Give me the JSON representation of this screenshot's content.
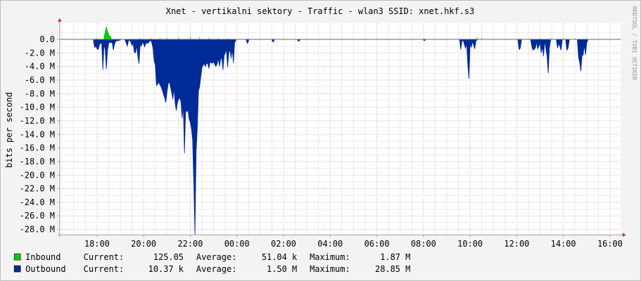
{
  "chart_data": {
    "type": "area",
    "title": "Xnet - vertikalni sektory - Traffic - wlan3 SSID: xnet.hkf.s3",
    "ylabel": "bits per second",
    "xlabel": "",
    "watermark": "RRDTOOL / TOBI OETIKER",
    "x_unit": "hour",
    "xlim": [
      16.4,
      40.45
    ],
    "ylim": [
      -28.8,
      2.4
    ],
    "grid": true,
    "legend_position": "bottom",
    "y_ticks": [
      {
        "value": 0,
        "label": "0.0"
      },
      {
        "value": -2,
        "label": "-2.0 M"
      },
      {
        "value": -4,
        "label": "-4.0 M"
      },
      {
        "value": -6,
        "label": "-6.0 M"
      },
      {
        "value": -8,
        "label": "-8.0 M"
      },
      {
        "value": -10,
        "label": "-10.0 M"
      },
      {
        "value": -12,
        "label": "-12.0 M"
      },
      {
        "value": -14,
        "label": "-14.0 M"
      },
      {
        "value": -16,
        "label": "-16.0 M"
      },
      {
        "value": -18,
        "label": "-18.0 M"
      },
      {
        "value": -20,
        "label": "-20.0 M"
      },
      {
        "value": -22,
        "label": "-22.0 M"
      },
      {
        "value": -24,
        "label": "-24.0 M"
      },
      {
        "value": -26,
        "label": "-26.0 M"
      },
      {
        "value": -28,
        "label": "-28.0 M"
      }
    ],
    "x_ticks": [
      {
        "value": 18,
        "label": "18:00"
      },
      {
        "value": 20,
        "label": "20:00"
      },
      {
        "value": 22,
        "label": "22:00"
      },
      {
        "value": 24,
        "label": "00:00"
      },
      {
        "value": 26,
        "label": "02:00"
      },
      {
        "value": 28,
        "label": "04:00"
      },
      {
        "value": 30,
        "label": "06:00"
      },
      {
        "value": 32,
        "label": "08:00"
      },
      {
        "value": 34,
        "label": "10:00"
      },
      {
        "value": 36,
        "label": "12:00"
      },
      {
        "value": 38,
        "label": "14:00"
      },
      {
        "value": 40,
        "label": "16:00"
      }
    ],
    "series": [
      {
        "name": "Inbound",
        "color": "#00cc00",
        "points": [
          [
            17.85,
            0.1
          ],
          [
            18.0,
            0.2
          ],
          [
            18.3,
            0.3
          ],
          [
            18.4,
            1.87
          ],
          [
            18.45,
            1.2
          ],
          [
            18.5,
            0.7
          ],
          [
            18.6,
            0.3
          ],
          [
            18.8,
            0.1
          ],
          [
            19.0,
            0.1
          ],
          [
            19.6,
            0.1
          ],
          [
            19.85,
            0.2
          ],
          [
            20.3,
            0.25
          ],
          [
            20.7,
            0.2
          ],
          [
            21.0,
            0.25
          ],
          [
            21.5,
            0.3
          ],
          [
            22.0,
            0.35
          ],
          [
            22.4,
            0.3
          ],
          [
            22.8,
            0.25
          ],
          [
            23.2,
            0.2
          ],
          [
            23.6,
            0.15
          ],
          [
            23.85,
            0.1
          ],
          [
            34.0,
            0.1
          ],
          [
            34.3,
            0.3
          ],
          [
            34.5,
            0.2
          ],
          [
            36.5,
            0.1
          ],
          [
            37.0,
            0.2
          ],
          [
            37.5,
            0.2
          ],
          [
            38.0,
            0.2
          ],
          [
            38.5,
            0.15
          ],
          [
            39.0,
            0.15
          ],
          [
            39.3,
            0.1
          ]
        ]
      },
      {
        "name": "Outbound",
        "color": "#002a97",
        "points": [
          [
            17.85,
            -0.3
          ],
          [
            17.9,
            -1.2
          ],
          [
            17.95,
            -1.0
          ],
          [
            18.0,
            -1.4
          ],
          [
            18.05,
            -1.5
          ],
          [
            18.1,
            -0.8
          ],
          [
            18.15,
            -0.6
          ],
          [
            18.2,
            -0.5
          ],
          [
            18.25,
            -4.5
          ],
          [
            18.3,
            -0.8
          ],
          [
            18.35,
            -1.5
          ],
          [
            18.4,
            -4.4
          ],
          [
            18.45,
            -1.6
          ],
          [
            18.5,
            -0.6
          ],
          [
            18.55,
            -0.4
          ],
          [
            18.6,
            -0.5
          ],
          [
            18.65,
            -0.4
          ],
          [
            18.7,
            -1.6
          ],
          [
            18.75,
            -0.7
          ],
          [
            18.8,
            -0.3
          ],
          [
            18.85,
            -0.2
          ],
          [
            18.9,
            -0.2
          ],
          [
            19.0,
            -0.1
          ],
          [
            19.2,
            -0.1
          ],
          [
            19.25,
            -0.5
          ],
          [
            19.3,
            -1.0
          ],
          [
            19.35,
            -0.2
          ],
          [
            19.4,
            -0.1
          ],
          [
            19.45,
            -0.4
          ],
          [
            19.5,
            -0.9
          ],
          [
            19.55,
            -0.6
          ],
          [
            19.6,
            -1.9
          ],
          [
            19.65,
            -2.0
          ],
          [
            19.7,
            -0.9
          ],
          [
            19.75,
            -2.5
          ],
          [
            19.8,
            -3.6
          ],
          [
            19.85,
            -0.7
          ],
          [
            19.9,
            -1.0
          ],
          [
            19.95,
            -0.4
          ],
          [
            20.0,
            -0.7
          ],
          [
            20.05,
            -1.1
          ],
          [
            20.1,
            -0.5
          ],
          [
            20.15,
            -0.6
          ],
          [
            20.2,
            -0.5
          ],
          [
            20.3,
            -0.1
          ],
          [
            20.35,
            -0.5
          ],
          [
            20.4,
            -1.3
          ],
          [
            20.45,
            -3.2
          ],
          [
            20.5,
            -3.8
          ],
          [
            20.55,
            -6.8
          ],
          [
            20.6,
            -6.6
          ],
          [
            20.65,
            -6.3
          ],
          [
            20.7,
            -6.7
          ],
          [
            20.75,
            -7.0
          ],
          [
            20.8,
            -7.5
          ],
          [
            20.85,
            -8.1
          ],
          [
            20.9,
            -8.6
          ],
          [
            20.95,
            -9.3
          ],
          [
            21.0,
            -7.8
          ],
          [
            21.05,
            -6.6
          ],
          [
            21.1,
            -6.2
          ],
          [
            21.15,
            -7.0
          ],
          [
            21.2,
            -7.8
          ],
          [
            21.25,
            -8.8
          ],
          [
            21.3,
            -7.2
          ],
          [
            21.35,
            -9.4
          ],
          [
            21.4,
            -10.5
          ],
          [
            21.45,
            -9.3
          ],
          [
            21.5,
            -8.8
          ],
          [
            21.55,
            -8.6
          ],
          [
            21.6,
            -9.2
          ],
          [
            21.65,
            -11.6
          ],
          [
            21.7,
            -9.8
          ],
          [
            21.75,
            -16.8
          ],
          [
            21.8,
            -10.4
          ],
          [
            21.85,
            -10.7
          ],
          [
            21.9,
            -10.3
          ],
          [
            21.95,
            -11.8
          ],
          [
            22.0,
            -12.2
          ],
          [
            22.05,
            -13.2
          ],
          [
            22.1,
            -14.8
          ],
          [
            22.15,
            -21.3
          ],
          [
            22.2,
            -28.8
          ],
          [
            22.25,
            -16.5
          ],
          [
            22.3,
            -13.2
          ],
          [
            22.35,
            -7.6
          ],
          [
            22.4,
            -7.0
          ],
          [
            22.45,
            -5.5
          ],
          [
            22.5,
            -4.2
          ],
          [
            22.55,
            -3.8
          ],
          [
            22.6,
            -3.6
          ],
          [
            22.65,
            -4.0
          ],
          [
            22.7,
            -3.5
          ],
          [
            22.75,
            -3.6
          ],
          [
            22.8,
            -4.3
          ],
          [
            22.85,
            -3.2
          ],
          [
            22.9,
            -3.5
          ],
          [
            22.95,
            -3.5
          ],
          [
            23.0,
            -3.3
          ],
          [
            23.05,
            -3.7
          ],
          [
            23.1,
            -4.0
          ],
          [
            23.15,
            -3.6
          ],
          [
            23.2,
            -2.8
          ],
          [
            23.25,
            -4.0
          ],
          [
            23.3,
            -3.0
          ],
          [
            23.35,
            -2.6
          ],
          [
            23.4,
            -4.5
          ],
          [
            23.45,
            -2.4
          ],
          [
            23.5,
            -2.0
          ],
          [
            23.55,
            -1.5
          ],
          [
            23.6,
            -4.1
          ],
          [
            23.65,
            -2.0
          ],
          [
            23.7,
            -1.5
          ],
          [
            23.75,
            -2.8
          ],
          [
            23.8,
            -1.4
          ],
          [
            23.85,
            -3.5
          ],
          [
            23.9,
            -0.5
          ],
          [
            23.95,
            -0.2
          ],
          [
            24.4,
            -0.1
          ],
          [
            24.45,
            -0.6
          ],
          [
            24.5,
            -0.2
          ],
          [
            25.5,
            -0.1
          ],
          [
            25.55,
            -0.4
          ],
          [
            25.6,
            -0.1
          ],
          [
            26.6,
            -0.1
          ],
          [
            26.65,
            -0.3
          ],
          [
            26.7,
            -0.1
          ],
          [
            32.0,
            -0.1
          ],
          [
            32.05,
            -0.2
          ],
          [
            32.1,
            -0.0
          ],
          [
            33.55,
            -0.1
          ],
          [
            33.6,
            -1.5
          ],
          [
            33.65,
            -0.3
          ],
          [
            33.7,
            -0.1
          ],
          [
            33.8,
            -1.3
          ],
          [
            33.85,
            -0.6
          ],
          [
            33.9,
            -3.6
          ],
          [
            33.95,
            -5.8
          ],
          [
            34.0,
            -0.6
          ],
          [
            34.05,
            -1.2
          ],
          [
            34.1,
            -0.3
          ],
          [
            34.2,
            -1.4
          ],
          [
            34.25,
            -0.2
          ],
          [
            34.3,
            -0.1
          ],
          [
            36.05,
            -0.1
          ],
          [
            36.1,
            -1.5
          ],
          [
            36.15,
            -1.3
          ],
          [
            36.2,
            -0.2
          ],
          [
            36.6,
            -0.1
          ],
          [
            36.65,
            -1.1
          ],
          [
            36.7,
            -1.6
          ],
          [
            36.75,
            -1.4
          ],
          [
            36.8,
            -1.3
          ],
          [
            36.85,
            -0.4
          ],
          [
            36.9,
            -1.4
          ],
          [
            36.95,
            -1.0
          ],
          [
            37.0,
            -0.5
          ],
          [
            37.05,
            -2.0
          ],
          [
            37.1,
            -1.1
          ],
          [
            37.15,
            -2.5
          ],
          [
            37.2,
            -0.2
          ],
          [
            37.3,
            -2.5
          ],
          [
            37.35,
            -5.0
          ],
          [
            37.4,
            -1.2
          ],
          [
            37.45,
            -0.2
          ],
          [
            37.7,
            -0.1
          ],
          [
            37.75,
            -1.3
          ],
          [
            37.8,
            -0.6
          ],
          [
            37.85,
            -1.0
          ],
          [
            37.9,
            -1.6
          ],
          [
            37.95,
            -0.1
          ],
          [
            38.1,
            -0.1
          ],
          [
            38.15,
            -1.6
          ],
          [
            38.2,
            -1.3
          ],
          [
            38.25,
            -0.2
          ],
          [
            38.6,
            -0.1
          ],
          [
            38.65,
            -2.6
          ],
          [
            38.7,
            -3.4
          ],
          [
            38.75,
            -4.7
          ],
          [
            38.8,
            -2.4
          ],
          [
            38.85,
            -2.3
          ],
          [
            38.9,
            -0.8
          ],
          [
            38.95,
            -2.3
          ],
          [
            39.0,
            -0.5
          ],
          [
            39.05,
            -0.1
          ]
        ]
      }
    ]
  },
  "legend": [
    {
      "name": "Inbound",
      "color": "#00cc00",
      "current_label": "Current:",
      "current": "125.05",
      "average_label": "Average:",
      "average": "51.04 k",
      "maximum_label": "Maximum:",
      "maximum": "1.87 M"
    },
    {
      "name": "Outbound",
      "color": "#002a97",
      "current_label": "Current:",
      "current": "10.37 k",
      "average_label": "Average:",
      "average": "1.50 M",
      "maximum_label": "Maximum:",
      "maximum": "28.85 M"
    }
  ]
}
